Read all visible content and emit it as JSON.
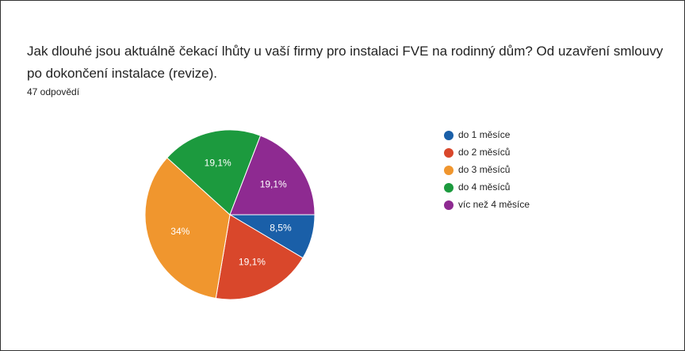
{
  "chart_data": {
    "type": "pie",
    "title": "Jak dlouhé jsou aktuálně čekací lhůty u vaší firmy pro instalaci FVE na rodinný dům? Od uzavření smlouvy po dokončení instalace (revize).",
    "subtitle": "47 odpovědí",
    "series": [
      {
        "name": "do 1 měsíce",
        "color": "#1a5fa8",
        "values": [
          8.5
        ],
        "value_labels": [
          "8,5%"
        ]
      },
      {
        "name": "do 2 měsíců",
        "color": "#d9472b",
        "values": [
          19.1
        ],
        "value_labels": [
          "19,1%"
        ]
      },
      {
        "name": "do 3 měsíců",
        "color": "#f0962e",
        "values": [
          34
        ],
        "value_labels": [
          "34%"
        ]
      },
      {
        "name": "do 4 měsíců",
        "color": "#1c9a3e",
        "values": [
          19.1
        ],
        "value_labels": [
          "19,1%"
        ]
      },
      {
        "name": "víc než 4 měsíce",
        "color": "#8e2a91",
        "values": [
          19.1
        ],
        "value_labels": [
          "19,1%"
        ]
      }
    ]
  }
}
